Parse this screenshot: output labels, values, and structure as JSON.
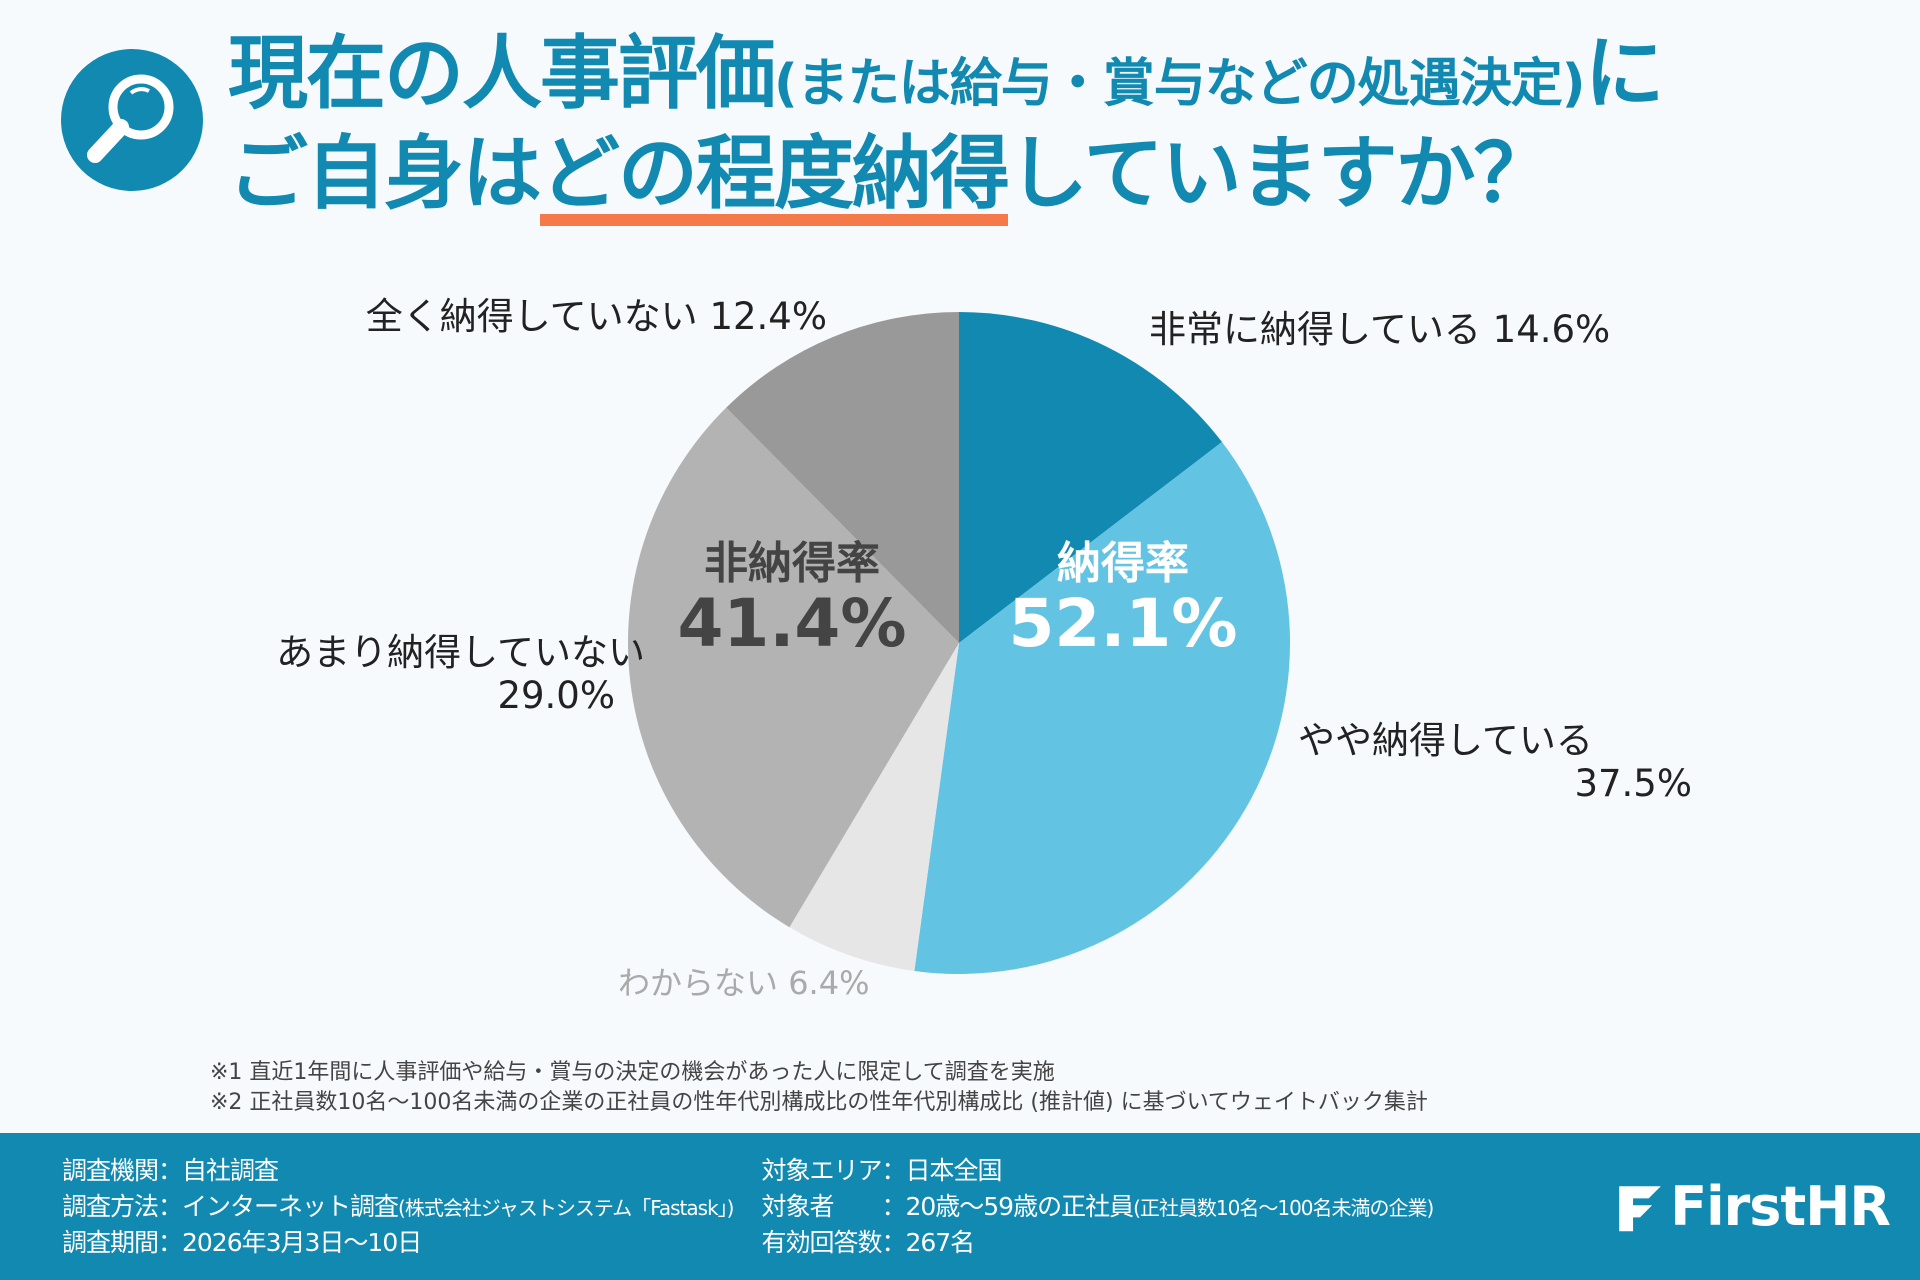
{
  "header": {
    "title_line1_main": "現在の人事評価",
    "title_line1_paren": "(または給与・賞与などの処遇決定)",
    "title_line1_end": "に",
    "title_line2_pre": "ご自身は",
    "title_line2_underlined": "どの程度納得",
    "title_line2_end": "していますか？"
  },
  "chart_data": {
    "type": "pie",
    "title": "現在の人事評価(または給与・賞与などの処遇決定)にご自身はどの程度納得していますか？",
    "categories": [
      "非常に納得している",
      "やや納得している",
      "わからない",
      "あまり納得していない",
      "全く納得していない"
    ],
    "values": [
      14.6,
      37.5,
      6.4,
      29.0,
      12.4
    ],
    "value_labels": [
      "14.6%",
      "37.5%",
      "6.4%",
      "29.0%",
      "12.4%"
    ],
    "colors": [
      "#1289b0",
      "#62c3e3",
      "#e6e6e6",
      "#b3b3b3",
      "#999999"
    ],
    "start": "top",
    "direction": "clockwise",
    "annotations": [
      {
        "label": "納得率",
        "value": "52.1%"
      },
      {
        "label": "非納得率",
        "value": "41.4%"
      }
    ]
  },
  "notes": [
    "※1 直近1年間に人事評価や給与・賞与の決定の機会があった人に限定して調査を実施",
    "※2 正社員数10名～100名未満の企業の正社員の性年代別構成比の性年代別構成比 (推計値) に基づいてウェイトバック集計"
  ],
  "footer": {
    "org": "調査機関：自社調査",
    "method": "調査方法：インターネット調査",
    "method_note": "(株式会社ジャストシステム「Fastask」)",
    "period": "調査期間：2026年3月3日～10日",
    "area": "対象エリア：日本全国",
    "target": "対象者　　：20歳～59歳の正社員",
    "target_note": "(正社員数10名～100名未満の企業)",
    "responses": "有効回答数：267名",
    "logo": "FirstHR"
  }
}
